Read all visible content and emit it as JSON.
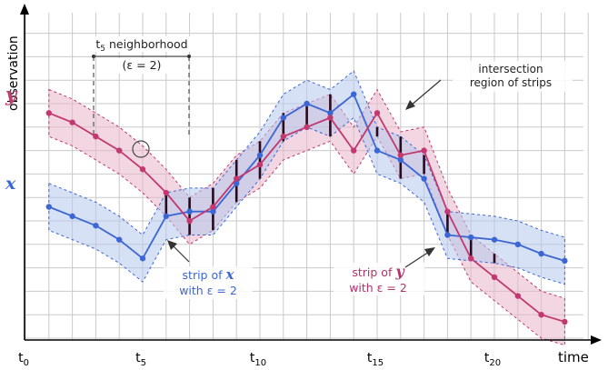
{
  "chart_data": {
    "type": "line",
    "title": "",
    "xlabel": "time",
    "ylabel": "observation",
    "x_ticks": [
      {
        "x": 0,
        "base": "t",
        "sub": "0"
      },
      {
        "x": 5,
        "base": "t",
        "sub": "5"
      },
      {
        "x": 10,
        "base": "t",
        "sub": "10"
      },
      {
        "x": 15,
        "base": "t",
        "sub": "15"
      },
      {
        "x": 20,
        "base": "t",
        "sub": "20"
      }
    ],
    "xlim": [
      0,
      23.5
    ],
    "ylim": [
      0,
      13.5
    ],
    "grid": true,
    "epsilon": 2,
    "series": [
      {
        "name": "y",
        "color": "#c2386f",
        "fill": "#e8b4c8",
        "x": [
          1,
          2,
          3,
          4,
          5,
          6,
          7,
          8,
          9,
          10,
          11,
          12,
          13,
          14,
          15,
          16,
          17,
          18,
          19,
          20,
          21,
          22,
          23
        ],
        "values": [
          9.6,
          9.2,
          8.6,
          8.0,
          7.2,
          6.2,
          5.0,
          5.6,
          6.8,
          7.4,
          8.6,
          9.0,
          9.4,
          8.0,
          9.6,
          7.8,
          8.0,
          5.4,
          3.4,
          2.6,
          1.8,
          1.0,
          0.7
        ]
      },
      {
        "name": "x",
        "color": "#3b66d4",
        "fill": "#b7c9ef",
        "x": [
          1,
          2,
          3,
          4,
          5,
          6,
          7,
          8,
          9,
          10,
          11,
          12,
          13,
          14,
          15,
          16,
          17,
          18,
          19,
          20,
          21,
          22,
          23
        ],
        "values": [
          5.6,
          5.2,
          4.8,
          4.2,
          3.4,
          5.2,
          5.4,
          5.4,
          6.6,
          7.8,
          9.4,
          10.0,
          9.6,
          10.4,
          8.0,
          7.6,
          6.8,
          4.4,
          4.3,
          4.2,
          4.0,
          3.6,
          3.3
        ]
      }
    ],
    "annotations": {
      "neighborhood_title": "t",
      "neighborhood_title_sub": "5",
      "neighborhood_title_suffix": " neighborhood",
      "neighborhood_eps": "(ε = 2)",
      "intersection_line1": "intersection",
      "intersection_line2": "region of strips",
      "strip_x_line1_pre": "strip of ",
      "strip_x_line1_var": "x",
      "strip_x_line2": "with ε = 2",
      "strip_y_line1_pre": "strip of ",
      "strip_y_line1_var": "y",
      "strip_y_line2": "with ε = 2",
      "y_label": "y",
      "x_label": "x"
    }
  }
}
